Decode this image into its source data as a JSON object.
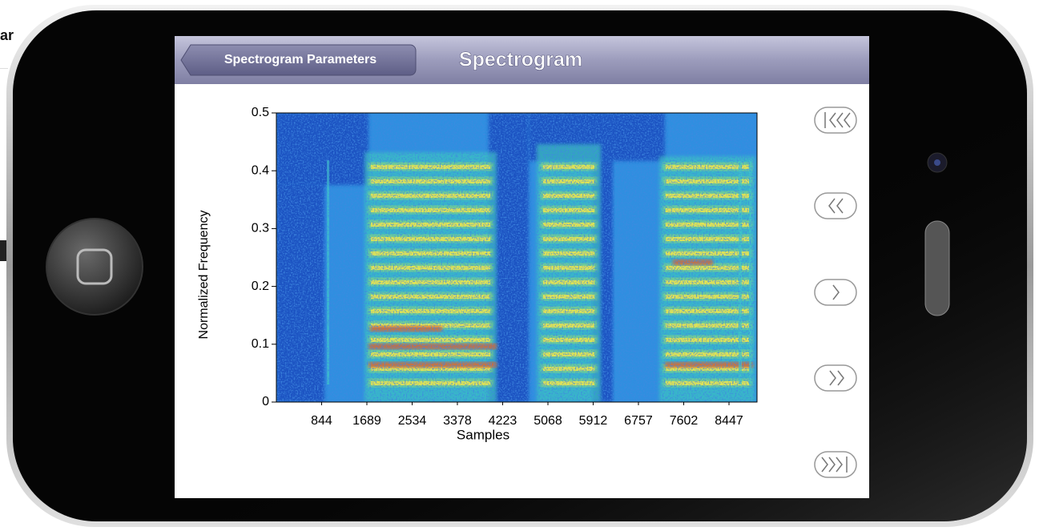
{
  "background_text": "ar",
  "nav": {
    "back_button": "Spectrogram Parameters",
    "title": "Spectrogram"
  },
  "chart_data": {
    "type": "heatmap",
    "x_label": "Samples",
    "y_label": "Normalized Frequency",
    "xlim": [
      0,
      8970
    ],
    "ylim": [
      0,
      0.5
    ],
    "xticks": [
      844,
      1689,
      2534,
      3378,
      4223,
      5068,
      5912,
      6757,
      7602,
      8447
    ],
    "yticks": [
      0,
      0.1,
      0.2,
      0.3,
      0.4,
      0.5
    ]
  }
}
